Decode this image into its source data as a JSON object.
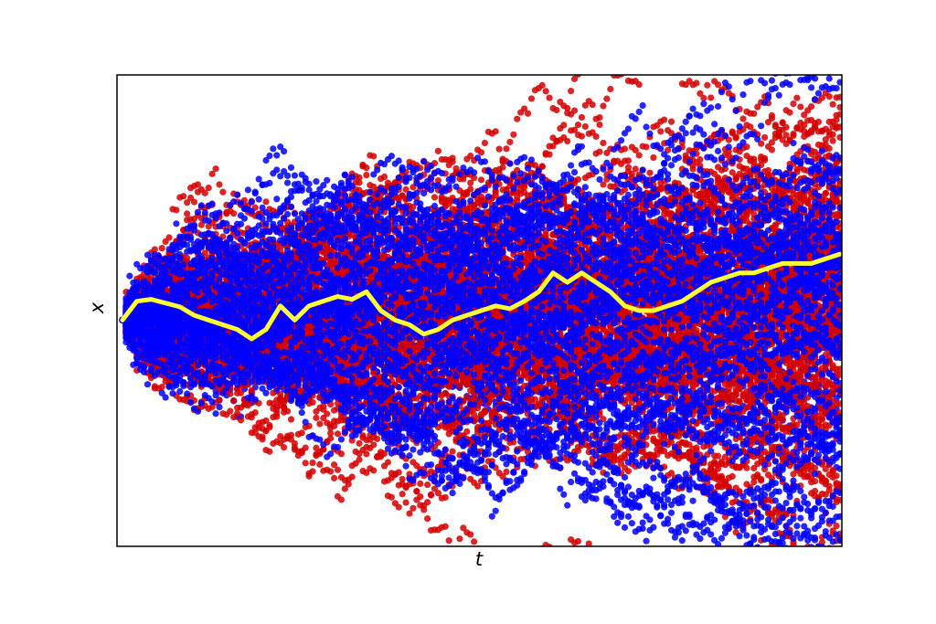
{
  "chart_data": {
    "type": "scatter",
    "title": "",
    "xlabel": "t",
    "ylabel": "x",
    "xlim": [
      0,
      1
    ],
    "ylim": [
      -2.4,
      2.6
    ],
    "grid": false,
    "legend": "none",
    "ticks_visible": false,
    "x0": 0.0,
    "y0": 0.0,
    "steps": 200,
    "colors": {
      "blue": "#0000ff",
      "red": "#d40000",
      "highlight": "#ffff33"
    },
    "ensembles": [
      {
        "color_key": "blue",
        "count": 55,
        "spread": 0.098,
        "seed": 11
      },
      {
        "color_key": "red",
        "count": 85,
        "spread": 0.088,
        "seed": 29
      }
    ],
    "highlight_path": {
      "x": [
        0.0,
        0.02,
        0.04,
        0.06,
        0.08,
        0.1,
        0.12,
        0.14,
        0.16,
        0.18,
        0.2,
        0.22,
        0.24,
        0.26,
        0.28,
        0.3,
        0.32,
        0.34,
        0.36,
        0.38,
        0.4,
        0.42,
        0.44,
        0.46,
        0.48,
        0.5,
        0.52,
        0.54,
        0.56,
        0.58,
        0.6,
        0.62,
        0.64,
        0.66,
        0.68,
        0.7,
        0.72,
        0.74,
        0.76,
        0.78,
        0.8,
        0.82,
        0.84,
        0.86,
        0.88,
        0.9,
        0.92,
        0.94,
        0.96,
        0.98,
        1.0
      ],
      "y": [
        0.0,
        0.2,
        0.22,
        0.18,
        0.14,
        0.05,
        0.0,
        -0.05,
        -0.1,
        -0.2,
        -0.1,
        0.15,
        0.0,
        0.15,
        0.2,
        0.25,
        0.22,
        0.3,
        0.1,
        0.0,
        -0.05,
        -0.15,
        -0.1,
        0.0,
        0.05,
        0.1,
        0.15,
        0.12,
        0.2,
        0.3,
        0.5,
        0.4,
        0.5,
        0.4,
        0.3,
        0.15,
        0.1,
        0.1,
        0.15,
        0.2,
        0.3,
        0.4,
        0.45,
        0.5,
        0.5,
        0.55,
        0.6,
        0.6,
        0.6,
        0.65,
        0.7
      ]
    }
  }
}
